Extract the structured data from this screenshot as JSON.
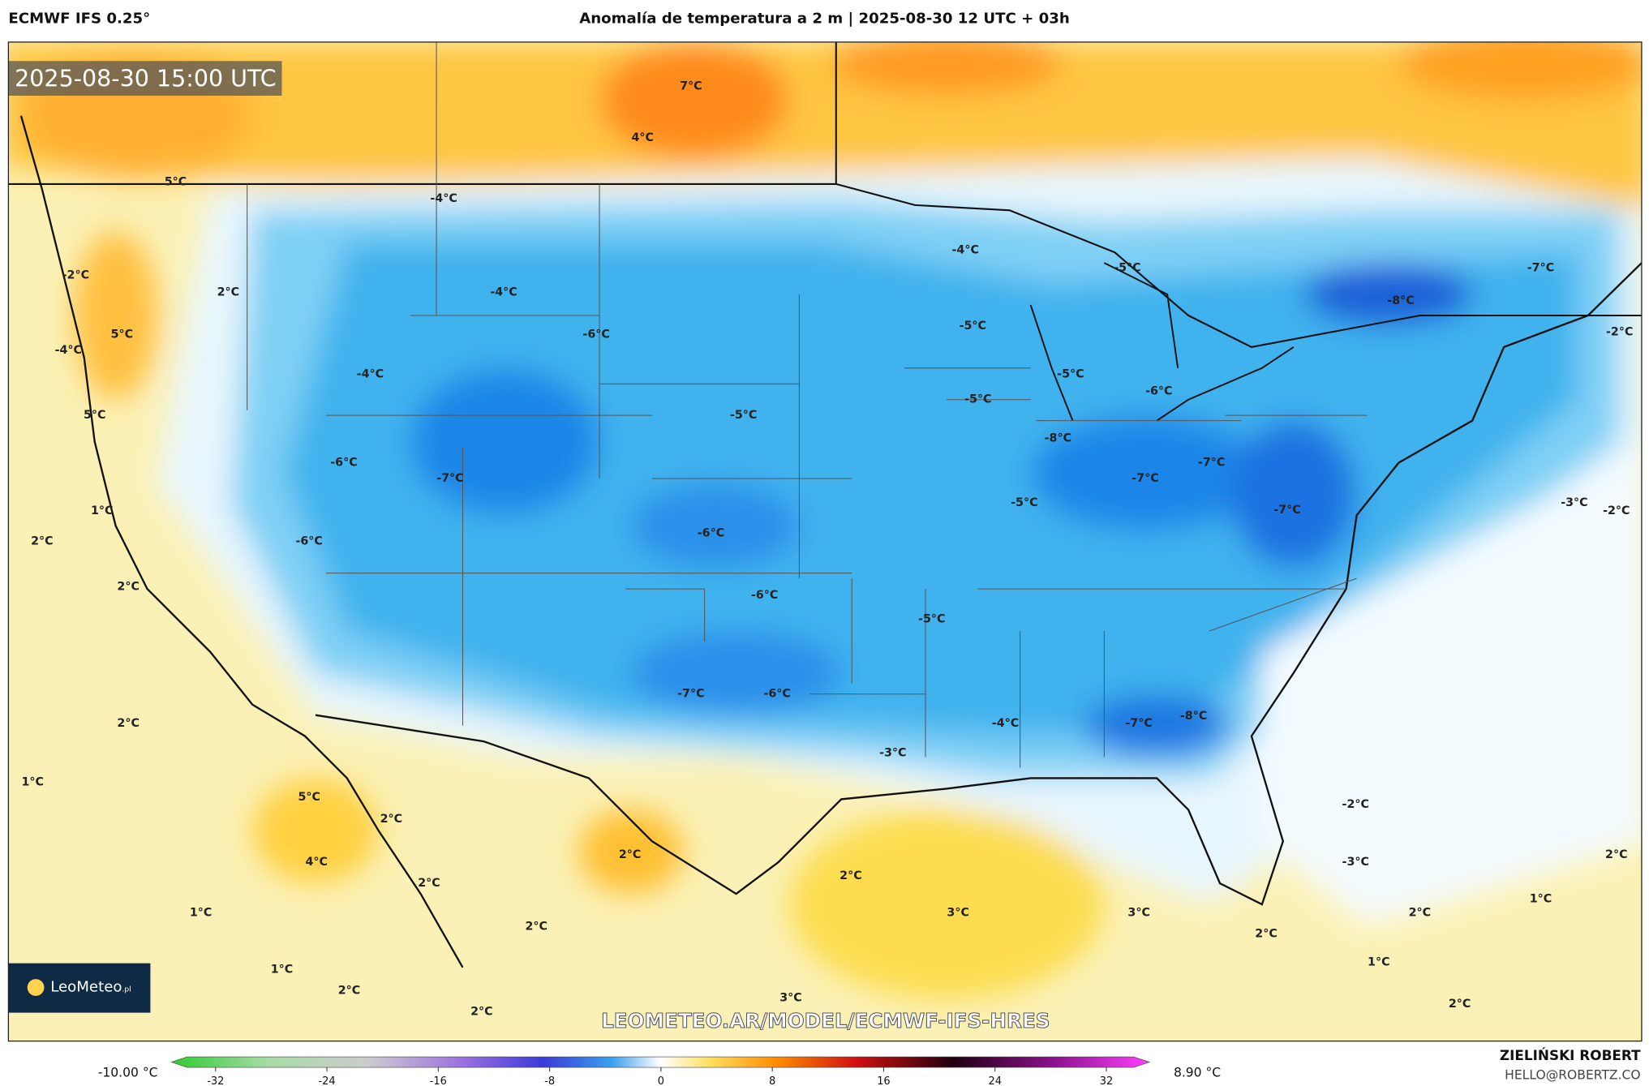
{
  "header": {
    "model": "ECMWF IFS 0.25°",
    "title": "Anomalía de temperatura a 2 m | 2025-08-30 12 UTC + 03h"
  },
  "map": {
    "timestamp": "2025-08-30 15:00 UTC",
    "logo": "LeoMeteo",
    "logo_suffix": ".pl",
    "watermark": "LEOMETEO.AR/MODEL/ECMWF-IFS-HRES",
    "labels": [
      "7°C",
      "4°C",
      "5°C",
      "-4°C",
      "-2°C",
      "2°C",
      "-4°C",
      "5°C",
      "-6°C",
      "-4°C",
      "-4°C",
      "-4°C",
      "-5°C",
      "-5°C",
      "-8°C",
      "-7°C",
      "-2°C",
      "-5°C",
      "-6°C",
      "-5°C",
      "5°C",
      "-5°C",
      "-8°C",
      "-6°C",
      "-7°C",
      "-7°C",
      "-7°C",
      "1°C",
      "-5°C",
      "-3°C",
      "-2°C",
      "2°C",
      "-6°C",
      "-6°C",
      "-7°C",
      "2°C",
      "-6°C",
      "-5°C",
      "-7°C",
      "-6°C",
      "2°C",
      "-4°C",
      "-7°C",
      "-8°C",
      "-3°C",
      "1°C",
      "5°C",
      "2°C",
      "-2°C",
      "2°C",
      "2°C",
      "4°C",
      "2°C",
      "-3°C",
      "2°C",
      "1°C",
      "3°C",
      "3°C",
      "1°C",
      "2°C",
      "2°C",
      "2°C",
      "1°C",
      "1°C",
      "2°C",
      "3°C",
      "2°C",
      "2°C"
    ]
  },
  "colorbar": {
    "min_label": "-10.00 °C",
    "max_label": "8.90 °C",
    "ticks": [
      -32,
      -24,
      -16,
      -8,
      0,
      8,
      16,
      24,
      32
    ]
  },
  "footer": {
    "author": "ZIELIŃSKI ROBERT",
    "email": "HELLO@ROBERTZ.CO"
  }
}
